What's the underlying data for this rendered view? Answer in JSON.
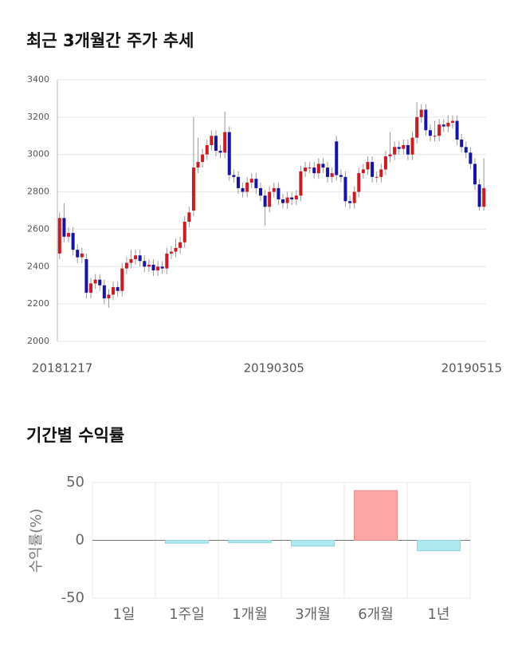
{
  "chart_data": [
    {
      "type": "candlestick",
      "title": "최근 3개월간 주가 추세",
      "categories": [
        "20181217",
        null,
        null,
        null,
        null,
        null,
        null,
        null,
        null,
        null,
        null,
        null,
        null,
        null,
        null,
        null,
        null,
        null,
        null,
        null,
        null,
        null,
        null,
        null,
        null,
        null,
        null,
        null,
        null,
        null,
        null,
        null,
        null,
        null,
        null,
        null,
        null,
        null,
        null,
        null,
        null,
        null,
        null,
        null,
        null,
        null,
        null,
        null,
        "20190305",
        null,
        null,
        null,
        null,
        null,
        null,
        null,
        null,
        null,
        null,
        null,
        null,
        null,
        null,
        null,
        null,
        null,
        null,
        null,
        null,
        null,
        null,
        null,
        null,
        null,
        null,
        null,
        null,
        null,
        null,
        null,
        null,
        null,
        null,
        null,
        null,
        null,
        null,
        null,
        null,
        null,
        null,
        null,
        null,
        null,
        null,
        "20190515"
      ],
      "open": [
        2470,
        2660,
        2560,
        2580,
        2490,
        2450,
        2440,
        2260,
        2310,
        2330,
        2300,
        2230,
        2250,
        2290,
        2270,
        2390,
        2420,
        2440,
        2460,
        2430,
        2400,
        2410,
        2380,
        2400,
        2390,
        2470,
        2480,
        2500,
        2530,
        2640,
        2700,
        2930,
        2960,
        3000,
        3050,
        3100,
        3020,
        3010,
        3120,
        2890,
        2880,
        2820,
        2800,
        2850,
        2870,
        2820,
        2780,
        2720,
        2800,
        2820,
        2760,
        2740,
        2770,
        2760,
        2780,
        2910,
        2930,
        2930,
        2900,
        2950,
        2930,
        2880,
        3070,
        2890,
        2880,
        2750,
        2740,
        2800,
        2900,
        2920,
        2960,
        2880,
        2880,
        2920,
        2990,
        3000,
        3040,
        3030,
        3050,
        3000,
        3090,
        3200,
        3240,
        3130,
        3100,
        3100,
        3160,
        3150,
        3170,
        3180,
        3080,
        3040,
        3010,
        2950,
        2840,
        2720
      ],
      "high": [
        2690,
        2740,
        2610,
        2610,
        2520,
        2500,
        2470,
        2340,
        2360,
        2360,
        2330,
        2280,
        2320,
        2320,
        2420,
        2450,
        2490,
        2490,
        2490,
        2460,
        2440,
        2440,
        2430,
        2430,
        2500,
        2510,
        2550,
        2560,
        2670,
        2720,
        3200,
        3090,
        3030,
        3080,
        3130,
        3130,
        3050,
        3230,
        3150,
        2920,
        2910,
        2850,
        2880,
        2900,
        2900,
        2850,
        2810,
        2830,
        2850,
        2850,
        2790,
        2800,
        2800,
        2810,
        2940,
        2960,
        2960,
        2960,
        2980,
        2980,
        2960,
        2930,
        3100,
        2920,
        2910,
        2780,
        2830,
        2930,
        2950,
        2990,
        2990,
        2910,
        2950,
        3020,
        3120,
        3070,
        3070,
        3080,
        3080,
        3120,
        3280,
        3270,
        3270,
        3160,
        3180,
        3190,
        3190,
        3210,
        3210,
        3210,
        3110,
        3070,
        3040,
        2980,
        2870,
        2980
      ],
      "low": [
        2440,
        2530,
        2530,
        2460,
        2420,
        2420,
        2230,
        2230,
        2280,
        2270,
        2200,
        2180,
        2220,
        2240,
        2240,
        2360,
        2390,
        2410,
        2400,
        2370,
        2370,
        2350,
        2350,
        2360,
        2360,
        2440,
        2450,
        2470,
        2500,
        2610,
        2670,
        2900,
        2930,
        2970,
        3020,
        2990,
        2980,
        2980,
        2860,
        2850,
        2790,
        2770,
        2770,
        2820,
        2790,
        2750,
        2620,
        2690,
        2770,
        2730,
        2710,
        2710,
        2730,
        2730,
        2750,
        2880,
        2900,
        2870,
        2870,
        2900,
        2850,
        2850,
        2860,
        2850,
        2720,
        2710,
        2710,
        2770,
        2870,
        2890,
        2850,
        2850,
        2850,
        2890,
        2960,
        2970,
        3000,
        3000,
        2970,
        2970,
        3060,
        3170,
        3100,
        3070,
        3070,
        3070,
        3120,
        3120,
        3140,
        3050,
        3010,
        2980,
        2920,
        2810,
        2700,
        2700
      ],
      "close": [
        2660,
        2560,
        2580,
        2490,
        2450,
        2470,
        2260,
        2310,
        2330,
        2300,
        2230,
        2250,
        2290,
        2270,
        2390,
        2420,
        2440,
        2460,
        2430,
        2400,
        2410,
        2380,
        2400,
        2390,
        2470,
        2480,
        2500,
        2530,
        2640,
        2690,
        2930,
        2960,
        3000,
        3050,
        3100,
        3020,
        3010,
        3120,
        2890,
        2880,
        2820,
        2800,
        2850,
        2870,
        2820,
        2780,
        2720,
        2800,
        2820,
        2760,
        2740,
        2770,
        2760,
        2780,
        2910,
        2930,
        2930,
        2900,
        2950,
        2930,
        2880,
        2900,
        2890,
        2880,
        2750,
        2740,
        2800,
        2900,
        2920,
        2960,
        2880,
        2880,
        2920,
        2990,
        3000,
        3040,
        3030,
        3050,
        3000,
        3090,
        3200,
        3240,
        3130,
        3100,
        3100,
        3160,
        3150,
        3170,
        3180,
        3080,
        3040,
        3010,
        2950,
        2840,
        2720,
        2820
      ],
      "up_color": "#d0181e",
      "down_color": "#1414a8",
      "ylim": [
        2000,
        3400
      ],
      "yticks": [
        2000,
        2200,
        2400,
        2600,
        2800,
        3000,
        3200,
        3400
      ],
      "grid": true
    },
    {
      "type": "bar",
      "title": "기간별 수익률",
      "ylabel": "수익률(%)",
      "categories": [
        "1일",
        "1주일",
        "1개월",
        "3개월",
        "6개월",
        "1년"
      ],
      "values": [
        0,
        -2.5,
        -2,
        -5,
        43,
        -9
      ],
      "positive_color": "#ffa5a5",
      "negative_color": "#aee8f0",
      "ylim": [
        -50,
        50
      ],
      "yticks": [
        -50,
        0,
        50
      ],
      "grid": true
    }
  ]
}
